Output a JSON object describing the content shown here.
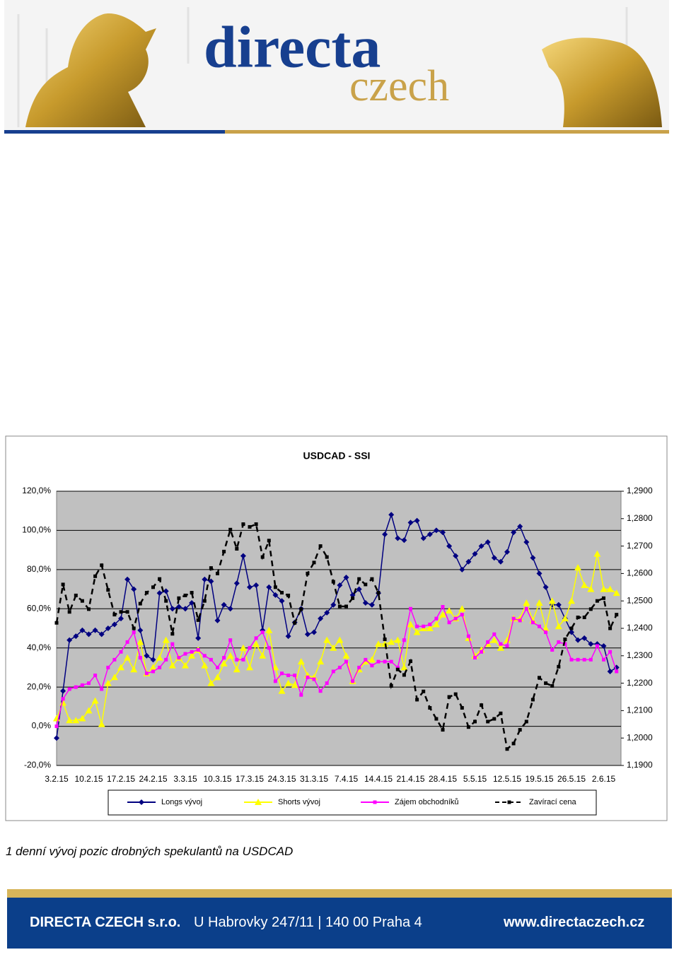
{
  "header": {
    "logo_top": "directa",
    "logo_bottom": "czech"
  },
  "chart_data": {
    "type": "line",
    "title": "USDCAD - SSI",
    "categories": [
      "3.2.15",
      null,
      null,
      null,
      null,
      "10.2.15",
      null,
      null,
      null,
      null,
      "17.2.15",
      null,
      null,
      null,
      null,
      "24.2.15",
      null,
      null,
      null,
      null,
      "3.3.15",
      null,
      null,
      null,
      null,
      "10.3.15",
      null,
      null,
      null,
      null,
      "17.3.15",
      null,
      null,
      null,
      null,
      "24.3.15",
      null,
      null,
      null,
      null,
      "31.3.15",
      null,
      null,
      null,
      null,
      "7.4.15",
      null,
      null,
      null,
      null,
      "14.4.15",
      null,
      null,
      null,
      null,
      "21.4.15",
      null,
      null,
      null,
      null,
      "28.4.15",
      null,
      null,
      null,
      null,
      "5.5.15",
      null,
      null,
      null,
      null,
      "12.5.15",
      null,
      null,
      null,
      null,
      "19.5.15",
      null,
      null,
      null,
      null,
      "26.5.15",
      null,
      null,
      null,
      null,
      "2.6.15",
      null,
      null
    ],
    "series": [
      {
        "name": "Longs vývoj",
        "color": "#000080",
        "marker": "diamond",
        "values": [
          -6,
          18,
          44,
          46,
          49,
          47,
          49,
          47,
          50,
          52,
          55,
          75,
          70,
          49,
          36,
          34,
          68,
          69,
          60,
          61,
          60,
          63,
          45,
          75,
          74,
          54,
          62,
          60,
          73,
          87,
          71,
          72,
          49,
          71,
          67,
          64,
          46,
          53,
          60,
          47,
          48,
          55,
          58,
          62,
          72,
          76,
          67,
          70,
          63,
          62,
          68,
          98,
          108,
          96,
          95,
          104,
          105,
          96,
          98,
          100,
          99,
          92,
          87,
          80,
          84,
          88,
          92,
          94,
          86,
          84,
          89,
          99,
          102,
          94,
          86,
          78,
          71,
          62,
          62,
          55,
          48,
          44,
          45,
          42,
          42,
          41,
          28,
          30
        ]
      },
      {
        "name": "Shorts vývoj",
        "color": "#ffff00",
        "marker": "triangle",
        "values": [
          4,
          12,
          3,
          3,
          4,
          8,
          13,
          1,
          22,
          25,
          30,
          35,
          29,
          43,
          27,
          30,
          35,
          44,
          31,
          35,
          31,
          36,
          39,
          31,
          22,
          25,
          32,
          36,
          29,
          40,
          30,
          42,
          36,
          49,
          30,
          18,
          22,
          21,
          33,
          26,
          25,
          33,
          44,
          40,
          44,
          36,
          23,
          29,
          33,
          34,
          42,
          42,
          43,
          44,
          30,
          52,
          48,
          50,
          50,
          52,
          57,
          59,
          55,
          60,
          45,
          36,
          39,
          42,
          44,
          40,
          44,
          55,
          55,
          63,
          54,
          63,
          50,
          64,
          51,
          55,
          64,
          81,
          72,
          70,
          88,
          70,
          70,
          68
        ]
      },
      {
        "name": "Zájem obchodníků",
        "color": "#ff00ff",
        "marker": "square",
        "values": [
          0,
          14,
          19,
          20,
          21,
          22,
          26,
          19,
          30,
          34,
          38,
          43,
          48,
          35,
          27,
          28,
          30,
          34,
          42,
          35,
          37,
          38,
          39,
          36,
          34,
          30,
          35,
          44,
          34,
          34,
          40,
          45,
          48,
          40,
          23,
          27,
          26,
          26,
          16,
          25,
          24,
          18,
          22,
          28,
          30,
          33,
          23,
          30,
          34,
          31,
          33,
          33,
          33,
          30,
          44,
          60,
          51,
          51,
          52,
          55,
          61,
          53,
          55,
          57,
          46,
          35,
          38,
          43,
          47,
          42,
          41,
          55,
          54,
          60,
          53,
          51,
          48,
          39,
          43,
          42,
          34,
          34,
          34,
          34,
          41,
          34,
          38,
          28
        ]
      },
      {
        "name": "Zavírací cena",
        "color": "#000000",
        "marker": "square",
        "dashed": true,
        "axis": "y2",
        "values": [
          1.242,
          1.256,
          1.246,
          1.252,
          1.25,
          1.247,
          1.259,
          1.263,
          1.254,
          1.245,
          1.246,
          1.246,
          1.24,
          1.249,
          1.253,
          1.255,
          1.258,
          1.25,
          1.238,
          1.251,
          1.252,
          1.253,
          1.243,
          1.25,
          1.262,
          1.26,
          1.268,
          1.276,
          1.269,
          1.278,
          1.277,
          1.278,
          1.266,
          1.272,
          1.255,
          1.253,
          1.252,
          1.242,
          1.247,
          1.26,
          1.264,
          1.27,
          1.266,
          1.257,
          1.248,
          1.248,
          1.251,
          1.258,
          1.256,
          1.258,
          1.253,
          1.236,
          1.219,
          1.225,
          1.223,
          1.228,
          1.214,
          1.217,
          1.211,
          1.207,
          1.203,
          1.215,
          1.216,
          1.211,
          1.204,
          1.206,
          1.212,
          1.206,
          1.207,
          1.209,
          1.196,
          1.198,
          1.203,
          1.206,
          1.214,
          1.222,
          1.22,
          1.219,
          1.226,
          1.236,
          1.24,
          1.244,
          1.244,
          1.247,
          1.25,
          1.251,
          1.24,
          1.245
        ]
      }
    ],
    "ylim": [
      -20,
      120
    ],
    "yticks": [
      {
        "value": -20,
        "label": "-20,0%"
      },
      {
        "value": 0,
        "label": "0,0%"
      },
      {
        "value": 20,
        "label": "20,0%"
      },
      {
        "value": 40,
        "label": "40,0%"
      },
      {
        "value": 60,
        "label": "60,0%"
      },
      {
        "value": 80,
        "label": "80,0%"
      },
      {
        "value": 100,
        "label": "100,0%"
      },
      {
        "value": 120,
        "label": "120,0%"
      }
    ],
    "y2lim": [
      1.19,
      1.29
    ],
    "y2ticks": [
      {
        "value": 1.19,
        "label": "1,1900"
      },
      {
        "value": 1.2,
        "label": "1,2000"
      },
      {
        "value": 1.21,
        "label": "1,2100"
      },
      {
        "value": 1.22,
        "label": "1,2200"
      },
      {
        "value": 1.23,
        "label": "1,2300"
      },
      {
        "value": 1.24,
        "label": "1,2400"
      },
      {
        "value": 1.25,
        "label": "1,2500"
      },
      {
        "value": 1.26,
        "label": "1,2600"
      },
      {
        "value": 1.27,
        "label": "1,2700"
      },
      {
        "value": 1.28,
        "label": "1,2800"
      },
      {
        "value": 1.29,
        "label": "1,2900"
      }
    ],
    "grid": true,
    "legend": "bottom"
  },
  "caption": "1 denní vývoj pozic drobných spekulantů na USDCAD",
  "footer": {
    "company": "DIRECTA CZECH s.r.o.",
    "address": "U Habrovky 247/11 | 140 00 Praha 4",
    "web": "www.directaczech.cz"
  }
}
